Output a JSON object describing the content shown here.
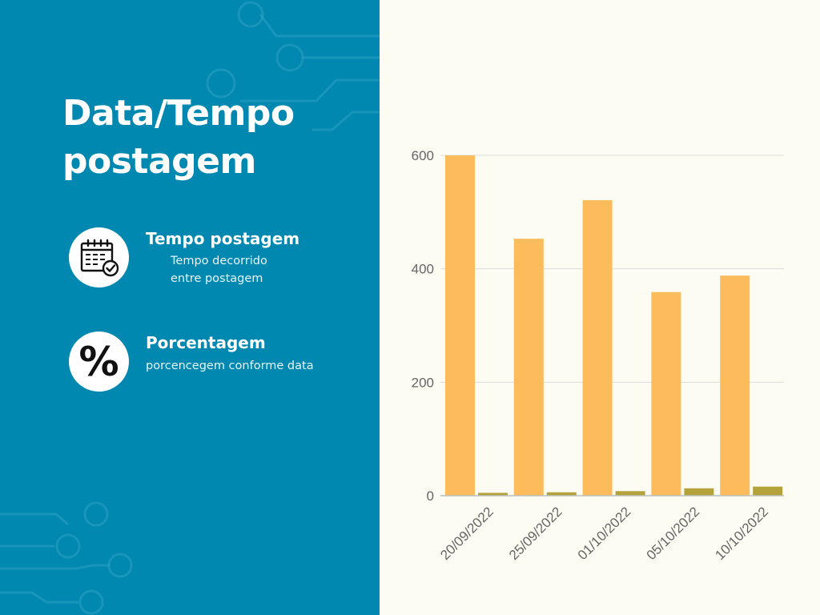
{
  "panel": {
    "title_line1": "Data/Tempo",
    "title_line2": "postagem",
    "items": [
      {
        "icon": "calendar-check-icon",
        "title": "Tempo postagem",
        "desc_line1": "Tempo decorrido",
        "desc_line2": "entre postagem"
      },
      {
        "icon": "percent-icon",
        "glyph": "%",
        "title": "Porcentagem",
        "desc_line1": "porcencegem conforme data"
      }
    ]
  },
  "colors": {
    "panel_bg": "#0088b0",
    "chart_bg": "#fcfcf3",
    "series_primary": "#fcbc5c",
    "series_secondary": "#b3a33a",
    "grid": "#dcdcdc",
    "axis": "#bdbdbd"
  },
  "chart_data": {
    "type": "bar",
    "categories": [
      "20/09/2022",
      "25/09/2022",
      "01/10/2022",
      "05/10/2022",
      "10/10/2022"
    ],
    "series": [
      {
        "values": [
          600,
          453,
          521,
          359,
          388
        ]
      },
      {
        "values": [
          5,
          6,
          8,
          13,
          16
        ]
      }
    ],
    "ylim": [
      0,
      600
    ],
    "yticks": [
      0,
      200,
      400,
      600
    ],
    "grid": true,
    "legend": "none"
  }
}
